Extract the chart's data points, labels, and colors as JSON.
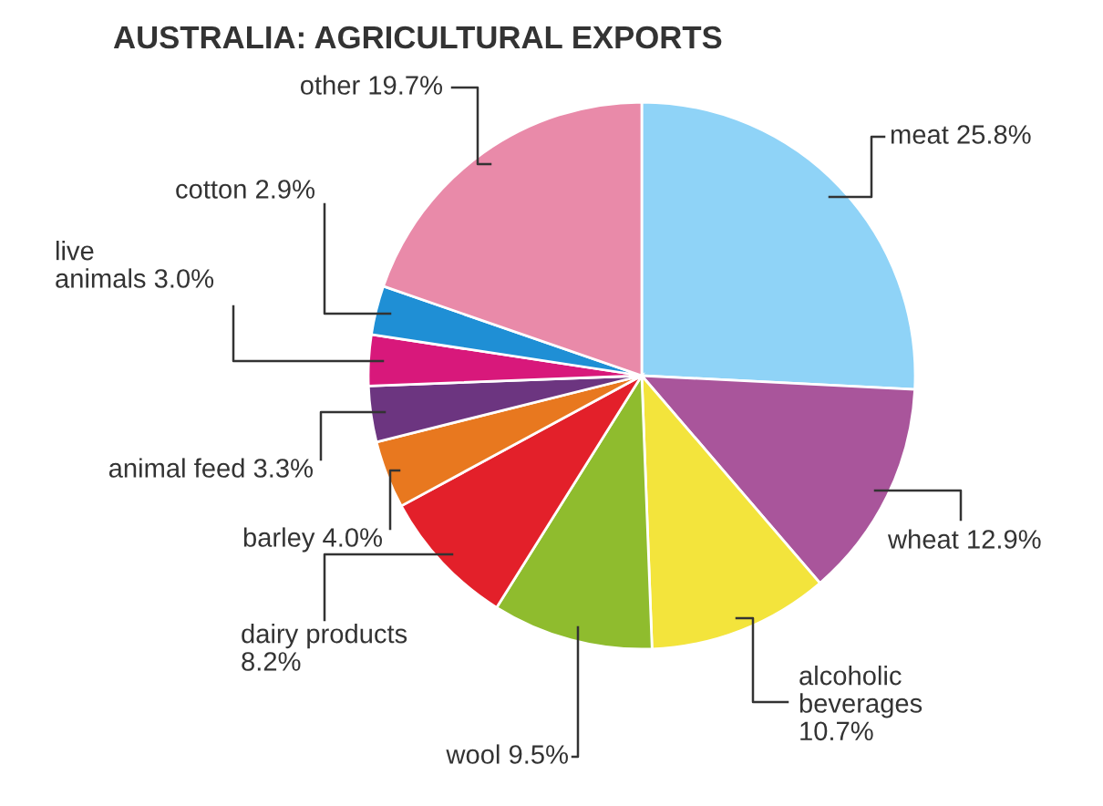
{
  "chart_data": {
    "type": "pie",
    "title": "AUSTRALIA: AGRICULTURAL EXPORTS",
    "categories": [
      "meat",
      "wheat",
      "alcoholic beverages",
      "wool",
      "dairy products",
      "barley",
      "animal feed",
      "live animals",
      "cotton",
      "other"
    ],
    "values": [
      25.8,
      12.9,
      10.7,
      9.5,
      8.2,
      4.0,
      3.3,
      3.0,
      2.9,
      19.7
    ],
    "value_labels": [
      "25.8%",
      "12.9%",
      "10.7%",
      "9.5%",
      "8.2%",
      "4.0%",
      "3.3%",
      "3.0%",
      "2.9%",
      "19.7%"
    ],
    "colors": [
      "#8fd3f7",
      "#a9559b",
      "#f3e43c",
      "#8fbc2e",
      "#e3202a",
      "#e8781f",
      "#6c3580",
      "#d8187b",
      "#1f8fd5",
      "#e98aa9"
    ]
  }
}
